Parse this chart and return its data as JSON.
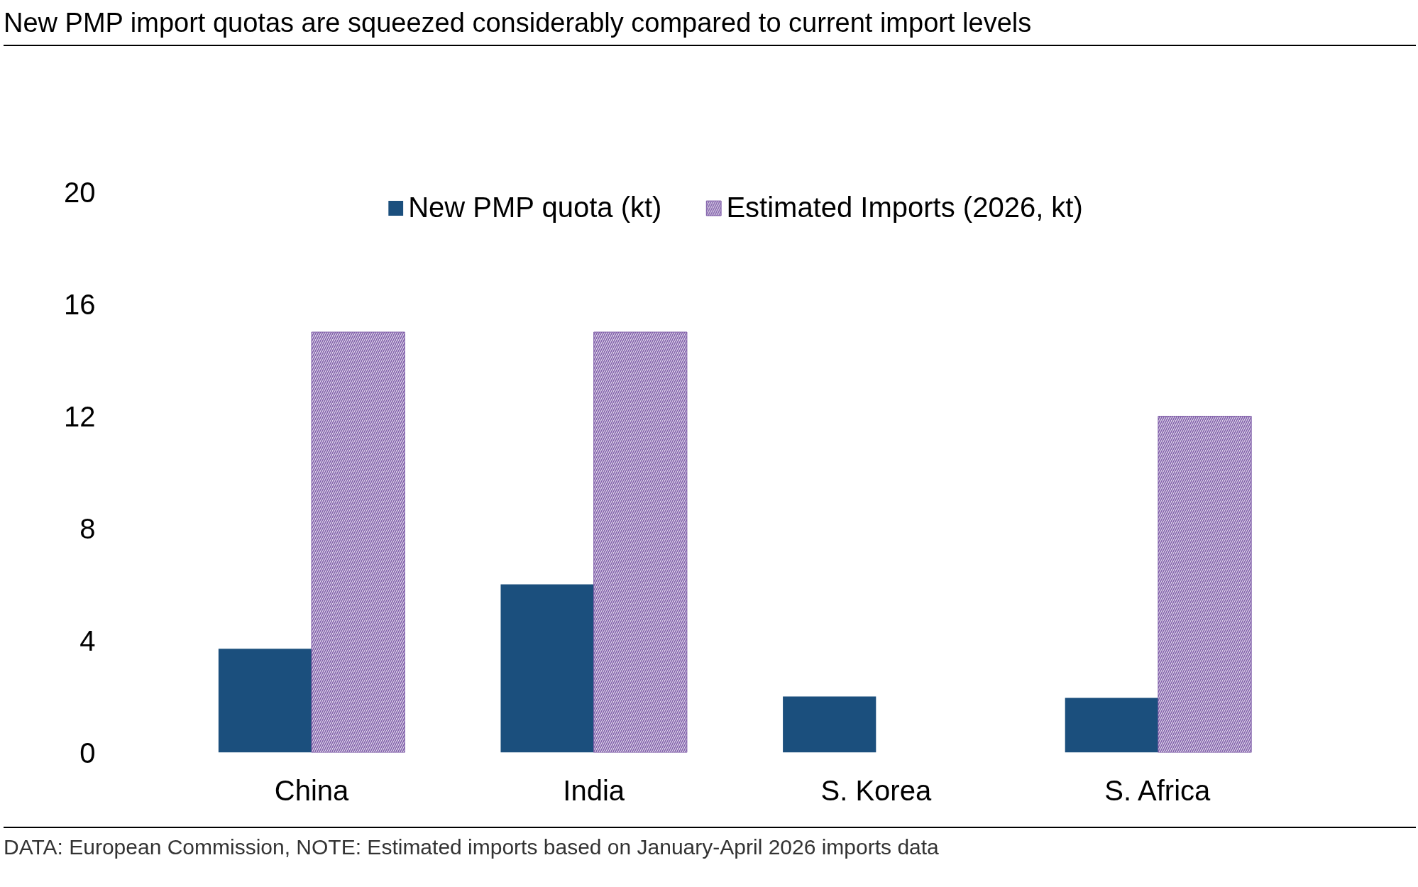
{
  "chart_data": {
    "type": "bar",
    "title": "New PMP import quotas are squeezed considerably compared to current import levels",
    "categories": [
      "China",
      "India",
      "S. Korea",
      "S. Africa"
    ],
    "series": [
      {
        "name": "New PMP quota (kt)",
        "color": "#1b4f7d",
        "values": [
          3.7,
          6,
          2,
          1.95
        ]
      },
      {
        "name": "Estimated Imports (2026, kt)",
        "color": "#7e5ca8",
        "values": [
          15,
          15,
          null,
          12
        ]
      }
    ],
    "ylim": [
      0,
      20
    ],
    "yticks": [
      0,
      4,
      8,
      12,
      16,
      20
    ],
    "grid": false,
    "legend": "top",
    "annotations": [
      "DATA: European Commission, NOTE: Estimated imports based on January-April 2026 imports data"
    ]
  }
}
